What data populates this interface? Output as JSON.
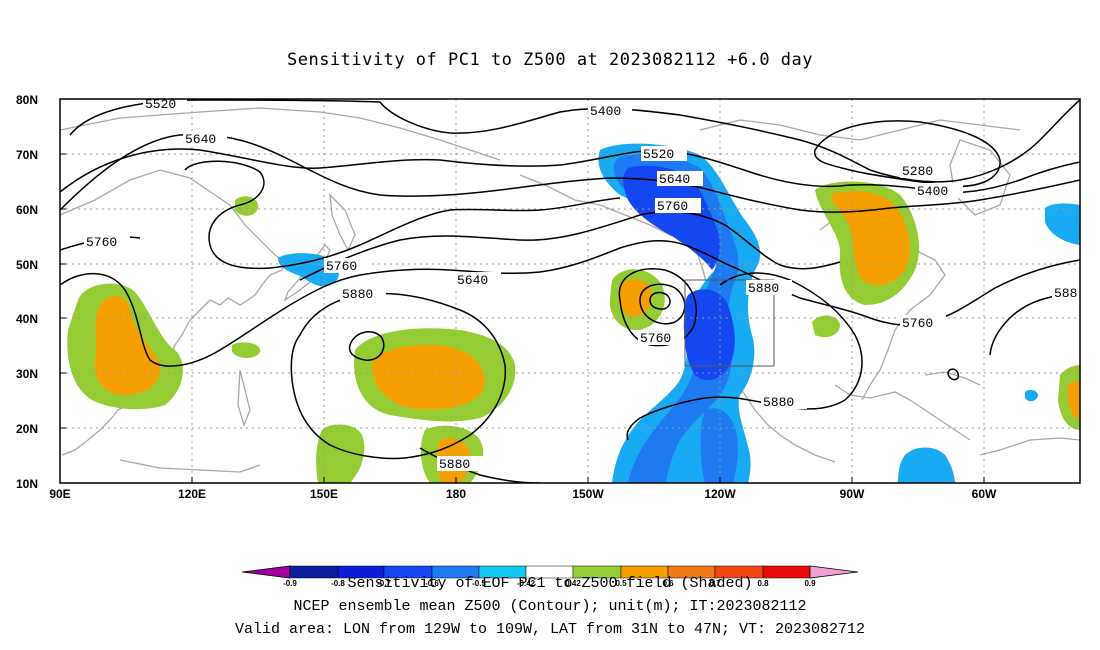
{
  "title": "Sensitivity of PC1 to Z500 at 2023082112 +6.0 day",
  "axes": {
    "lon_ticks": [
      "90E",
      "120E",
      "150E",
      "180",
      "150W",
      "120W",
      "90W",
      "60W"
    ],
    "lat_ticks": [
      "80N",
      "70N",
      "60N",
      "50N",
      "40N",
      "30N",
      "20N",
      "10N"
    ],
    "lon_range": [
      90,
      322
    ],
    "lat_range": [
      10,
      80
    ]
  },
  "contour_labels": [
    "5520",
    "5640",
    "5400",
    "5520",
    "5640",
    "5760",
    "5280",
    "5400",
    "5760",
    "5760",
    "5640",
    "5880",
    "5880",
    "5760",
    "5760",
    "5880",
    "5880",
    "588"
  ],
  "colorbar": {
    "ticks": [
      "-0.9",
      "-0.8",
      "-0.7",
      "-0.6",
      "-0.5",
      "-0.42",
      "0.42",
      "0.5",
      "0.6",
      "0.7",
      "0.8",
      "0.9"
    ],
    "colors": [
      "#a3009e",
      "#0c1f9b",
      "#0b20d6",
      "#1447f0",
      "#1e7af0",
      "#18aaf2",
      "#14c8f5",
      "#ffffff",
      "#96cc33",
      "#f5a000",
      "#f07a14",
      "#f04a14",
      "#f01e0f",
      "#e60a0a",
      "#f0a0d2"
    ]
  },
  "footer": {
    "line1": "Sensitivity of EOF PC1 to Z500 field (Shaded)",
    "line2": "NCEP ensemble mean Z500 (Contour); unit(m); IT:2023082112",
    "line3": "Valid area: LON from 129W to 109W, LAT from 31N to 47N; VT: 2023082712"
  },
  "valid_area": {
    "lon_min": -129,
    "lon_max": -109,
    "lat_min": 31,
    "lat_max": 47
  },
  "shading": {
    "positive_outer": "#96cc33",
    "positive_inner": "#f5a000",
    "negative_outer": "#18aaf2",
    "negative_mid": "#1e7af0",
    "negative_inner": "#1447f0"
  }
}
